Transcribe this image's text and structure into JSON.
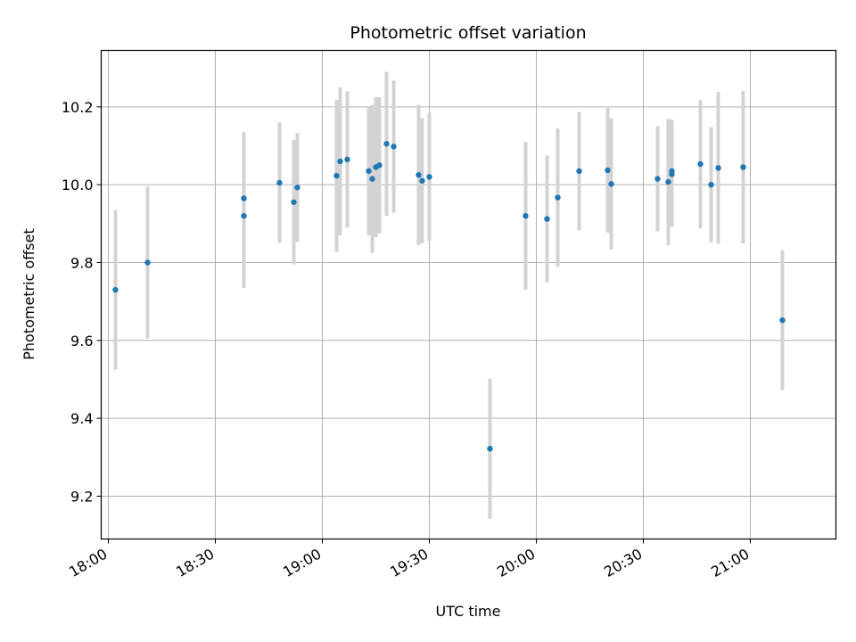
{
  "chart_data": {
    "type": "scatter",
    "title": "Photometric offset variation",
    "xlabel": "UTC time",
    "ylabel": "Photometric offset",
    "x_unit": "minutes after 18:00 UTC",
    "xlim": [
      "17:58",
      "21:24"
    ],
    "ylim": [
      9.09,
      10.345
    ],
    "xticks": [
      "18:00",
      "18:30",
      "19:00",
      "19:30",
      "20:00",
      "20:30",
      "21:00"
    ],
    "yticks": [
      9.2,
      9.4,
      9.6,
      9.8,
      10.0,
      10.2
    ],
    "ytick_labels": [
      "9.2",
      "9.4",
      "9.6",
      "9.8",
      "10.0",
      "10.2"
    ],
    "grid": true,
    "colors": {
      "marker": "#1f77b4",
      "errorbar": "#d3d3d3",
      "grid": "#b0b0b0"
    },
    "points": [
      {
        "t": "18:02",
        "y": 9.73,
        "err": 0.205
      },
      {
        "t": "18:11",
        "y": 9.8,
        "err": 0.195
      },
      {
        "t": "18:38",
        "y": 9.92,
        "err": 0.185
      },
      {
        "t": "18:38",
        "y": 9.965,
        "err": 0.17
      },
      {
        "t": "18:48",
        "y": 10.005,
        "err": 0.155
      },
      {
        "t": "18:52",
        "y": 9.955,
        "err": 0.16
      },
      {
        "t": "18:53",
        "y": 9.993,
        "err": 0.14
      },
      {
        "t": "19:04",
        "y": 10.023,
        "err": 0.195
      },
      {
        "t": "19:05",
        "y": 10.06,
        "err": 0.19
      },
      {
        "t": "19:07",
        "y": 10.065,
        "err": 0.175
      },
      {
        "t": "19:13",
        "y": 10.035,
        "err": 0.165
      },
      {
        "t": "19:14",
        "y": 10.015,
        "err": 0.19
      },
      {
        "t": "19:15",
        "y": 10.045,
        "err": 0.18
      },
      {
        "t": "19:16",
        "y": 10.05,
        "err": 0.175
      },
      {
        "t": "19:18",
        "y": 10.105,
        "err": 0.185
      },
      {
        "t": "19:20",
        "y": 10.098,
        "err": 0.17
      },
      {
        "t": "19:27",
        "y": 10.025,
        "err": 0.18
      },
      {
        "t": "19:28",
        "y": 10.01,
        "err": 0.16
      },
      {
        "t": "19:30",
        "y": 10.02,
        "err": 0.165
      },
      {
        "t": "19:47",
        "y": 9.322,
        "err": 0.18
      },
      {
        "t": "19:57",
        "y": 9.92,
        "err": 0.19
      },
      {
        "t": "20:03",
        "y": 9.912,
        "err": 0.163
      },
      {
        "t": "20:06",
        "y": 9.967,
        "err": 0.178
      },
      {
        "t": "20:12",
        "y": 10.035,
        "err": 0.152
      },
      {
        "t": "20:20",
        "y": 10.037,
        "err": 0.16
      },
      {
        "t": "20:21",
        "y": 10.002,
        "err": 0.168
      },
      {
        "t": "20:34",
        "y": 10.015,
        "err": 0.135
      },
      {
        "t": "20:37",
        "y": 10.007,
        "err": 0.162
      },
      {
        "t": "20:38",
        "y": 10.035,
        "err": 0.132
      },
      {
        "t": "20:38",
        "y": 10.027,
        "err": 0.135
      },
      {
        "t": "20:46",
        "y": 10.053,
        "err": 0.165
      },
      {
        "t": "20:49",
        "y": 10.0,
        "err": 0.148
      },
      {
        "t": "20:51",
        "y": 10.043,
        "err": 0.195
      },
      {
        "t": "20:58",
        "y": 10.045,
        "err": 0.196
      },
      {
        "t": "21:09",
        "y": 9.652,
        "err": 0.18
      }
    ]
  }
}
